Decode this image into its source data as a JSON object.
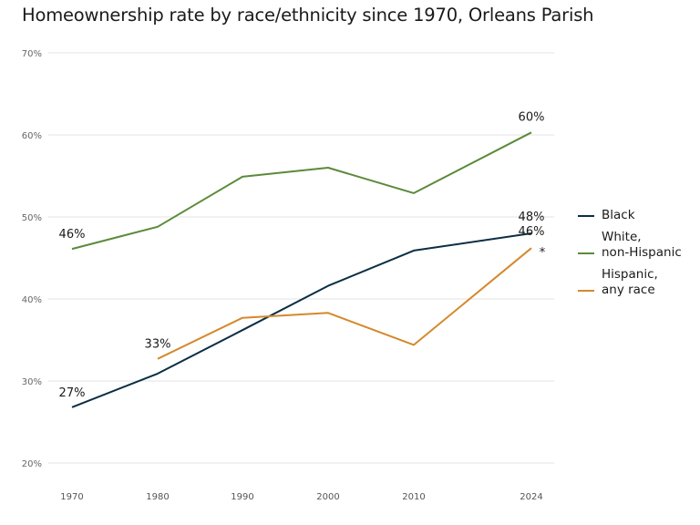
{
  "chart_data": {
    "type": "line",
    "title": "Homeownership rate by race/ethnicity since 1970, Orleans Parish",
    "xlabel": "",
    "ylabel": "",
    "x": [
      1970,
      1980,
      1990,
      2000,
      2010,
      2024
    ],
    "x_tick_labels": [
      "1970",
      "1980",
      "1990",
      "2000",
      "2010",
      "2024"
    ],
    "ylim": [
      20,
      70
    ],
    "y_ticks": [
      20,
      30,
      40,
      50,
      60,
      70
    ],
    "y_tick_labels": [
      "20%",
      "30%",
      "40%",
      "50%",
      "60%",
      "70%"
    ],
    "grid": true,
    "legend_position": "right",
    "series": [
      {
        "name": "Black",
        "legend_label": "Black",
        "color": "#0b2e45",
        "values": [
          26.8,
          30.9,
          36.2,
          41.6,
          45.9,
          48.0
        ],
        "labels": [
          {
            "x": 1970,
            "text": "27%"
          },
          {
            "x": 2024,
            "text": "48%"
          }
        ]
      },
      {
        "name": "White, non-Hispanic",
        "legend_label": "White,\nnon-Hispanic",
        "color": "#5b8a3a",
        "values": [
          46.1,
          48.8,
          54.9,
          56.0,
          52.9,
          60.3
        ],
        "labels": [
          {
            "x": 1970,
            "text": "46%"
          },
          {
            "x": 2024,
            "text": "60%"
          }
        ]
      },
      {
        "name": "Hispanic, any race",
        "legend_label": "Hispanic,\nany race",
        "color": "#d4892c",
        "values": [
          null,
          32.7,
          37.7,
          38.3,
          34.4,
          46.2
        ],
        "labels": [
          {
            "x": 1980,
            "text": "33%"
          },
          {
            "x": 2024,
            "text": "46%"
          }
        ]
      }
    ],
    "annotations": [
      {
        "text": "*",
        "x": 2024,
        "y": 46.2,
        "series": "Hispanic, any race"
      }
    ]
  }
}
